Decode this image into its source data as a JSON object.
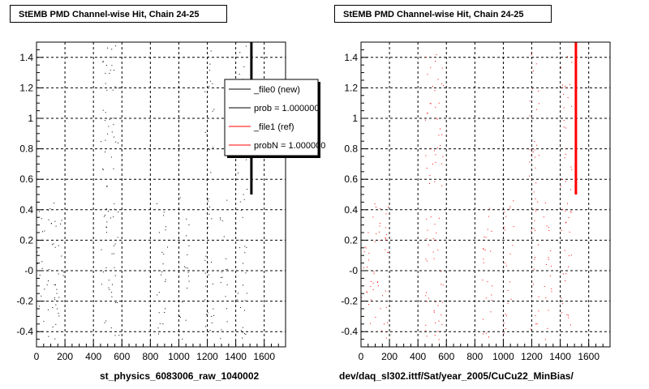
{
  "chart_data": [
    {
      "type": "scatter",
      "title": "StEMB PMD Channel-wise Hit, Chain 24-25",
      "xlabel": "st_physics_6083006_raw_1040002",
      "ylabel": "",
      "xlim": [
        0,
        1750
      ],
      "ylim": [
        -0.5,
        1.5
      ],
      "xticks": [
        "0",
        "200",
        "400",
        "600",
        "800",
        "1000",
        "1200",
        "1400",
        "1600"
      ],
      "xtick_values": [
        0,
        200,
        400,
        600,
        800,
        1000,
        1200,
        1400,
        1600
      ],
      "yticks": [
        "-0.4",
        "-0.2",
        "-0",
        "0.2",
        "0.4",
        "0.6",
        "0.8",
        "1",
        "1.2",
        "1.4"
      ],
      "ytick_values": [
        -0.4,
        -0.2,
        0,
        0.2,
        0.4,
        0.6,
        0.8,
        1.0,
        1.2,
        1.4
      ],
      "grid": true,
      "legend_position": "top-right",
      "legend": [
        {
          "label": "_file0 (new)",
          "color": "#000000"
        },
        {
          "label": "prob = 1.000000",
          "color": "#000000"
        },
        {
          "label": "_file1 (ref)",
          "color": "#ff0000"
        },
        {
          "label": "probN = 1.000000",
          "color": "#ff0000"
        }
      ],
      "series": [
        {
          "color": "#000000",
          "clusters": [
            {
              "x": [
                0,
                190
              ],
              "y": [
                -0.45,
                0.45
              ]
            },
            {
              "x": [
                450,
                580
              ],
              "y": [
                0.55,
                1.48
              ]
            },
            {
              "x": [
                450,
                580
              ],
              "y": [
                -0.45,
                0.45
              ]
            },
            {
              "x": [
                840,
                920
              ],
              "y": [
                -0.45,
                0.45
              ]
            },
            {
              "x": [
                1000,
                1070
              ],
              "y": [
                -0.45,
                0.5
              ]
            },
            {
              "x": [
                1180,
                1250
              ],
              "y": [
                -0.45,
                1.48
              ]
            },
            {
              "x": [
                1280,
                1340
              ],
              "y": [
                -0.45,
                0.5
              ]
            },
            {
              "x": [
                1400,
                1480
              ],
              "y": [
                -0.45,
                1.48
              ]
            }
          ],
          "vertical_line": {
            "x": 1510,
            "y": [
              0.5,
              1.5
            ]
          }
        }
      ]
    },
    {
      "type": "scatter",
      "title": "StEMB PMD Channel-wise Hit, Chain 24-25",
      "xlabel": "dev/daq_sl302.ittf/Sat/year_2005/CuCu22_MinBias/",
      "ylabel": "",
      "xlim": [
        0,
        1750
      ],
      "ylim": [
        -0.5,
        1.5
      ],
      "xticks": [
        "0",
        "200",
        "400",
        "600",
        "800",
        "1000",
        "1200",
        "1400",
        "1600"
      ],
      "xtick_values": [
        0,
        200,
        400,
        600,
        800,
        1000,
        1200,
        1400,
        1600
      ],
      "yticks": [
        "-0.4",
        "-0.2",
        "-0",
        "0.2",
        "0.4",
        "0.6",
        "0.8",
        "1",
        "1.2",
        "1.4"
      ],
      "ytick_values": [
        -0.4,
        -0.2,
        0,
        0.2,
        0.4,
        0.6,
        0.8,
        1.0,
        1.2,
        1.4
      ],
      "grid": true,
      "series": [
        {
          "color": "#ff0000",
          "clusters": [
            {
              "x": [
                0,
                190
              ],
              "y": [
                -0.45,
                0.45
              ]
            },
            {
              "x": [
                450,
                580
              ],
              "y": [
                0.55,
                1.48
              ]
            },
            {
              "x": [
                450,
                580
              ],
              "y": [
                -0.45,
                0.45
              ]
            },
            {
              "x": [
                840,
                920
              ],
              "y": [
                -0.45,
                0.45
              ]
            },
            {
              "x": [
                1000,
                1070
              ],
              "y": [
                -0.45,
                0.5
              ]
            },
            {
              "x": [
                1180,
                1250
              ],
              "y": [
                -0.45,
                1.48
              ]
            },
            {
              "x": [
                1280,
                1340
              ],
              "y": [
                -0.45,
                0.5
              ]
            },
            {
              "x": [
                1400,
                1480
              ],
              "y": [
                -0.45,
                1.48
              ]
            }
          ],
          "vertical_line": {
            "x": 1510,
            "y": [
              0.5,
              1.5
            ]
          }
        }
      ]
    }
  ]
}
